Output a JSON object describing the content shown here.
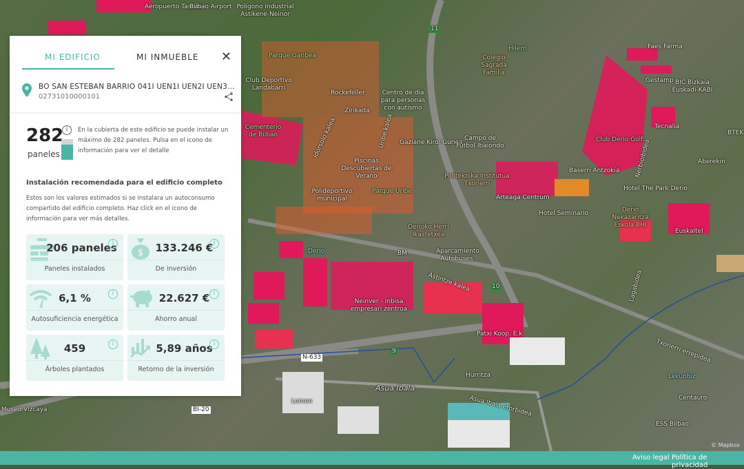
{
  "panel": {
    "tabs": [
      {
        "label": "MI EDIFICIO",
        "active": true
      },
      {
        "label": "MI INMUEBLE",
        "active": false
      }
    ],
    "close_icon": "close-icon",
    "address": "BO SAN ESTEBAN BARRIO 041I UEN1I UEN2I UEN3...",
    "reference": "02731010000101",
    "max_panels": "282",
    "max_panels_unit": "paneles",
    "gauge_fill_fraction": 0.73,
    "max_panels_description": "En la cubierta de este edificio se puede instalar un máximo de 282 paneles. Pulsa en el icono de información para ver el detalle",
    "recommended_title": "Instalación recomendada para el edificio completo",
    "recommended_description": "Estos son los valores estimados si se instalara un autoconsumo compartido del edificio completo. Haz click en el icono de información para ver más detalles.",
    "cards": [
      {
        "value": "206 paneles",
        "label": "Paneles instalados",
        "icon": "solar-panel-icon"
      },
      {
        "value": "133.246 €",
        "label": "De inversión",
        "icon": "money-bag-icon"
      },
      {
        "value": "6,1 %",
        "label": "Autosuficiencia energética",
        "icon": "energy-gauge-icon"
      },
      {
        "value": "22.627 €",
        "label": "Ahorro anual",
        "icon": "piggy-bank-icon"
      },
      {
        "value": "459",
        "label": "Árboles plantados",
        "icon": "trees-icon"
      },
      {
        "value": "5,89 años",
        "label": "Retorno de la inversión",
        "icon": "growth-chart-icon"
      }
    ],
    "accent_color": "#4bb5a5"
  },
  "map": {
    "labels": [
      "Aeropuerto Taskas",
      "Bilbao Airport",
      "Polígono Industrial Astikene-Neinor",
      "Parque Ganbea",
      "Club Deportivo Landabarri",
      "Rockefeller",
      "Centro de día para personas con autismo",
      "Zirikada",
      "Colegio Sagrada Familia",
      "Hilerri",
      "Cementerio de Bilbao",
      "Gaziane Kirol Gunea",
      "Campo de Fútbol Ibaiondo",
      "Piscinas Descubiertas de Verano",
      "Polideportivo municipal",
      "Parque Uribe",
      "Politeknika Institutua Txorierri",
      "Arteaga Centrum",
      "Hotel Seminario",
      "Derioko Herri Ikastetxea",
      "BM",
      "Aparcamiento Autobuses",
      "Derio",
      "Neinver - Inbisa empresari zentroa",
      "Patxi Koop. E.k.",
      "Hurritza",
      "Lomen",
      "Faes Farma",
      "Gestamp",
      "BIC Bizkaia Euskadi-KABI",
      "Tecnalia",
      "Club Derio Golf",
      "Baserri Antzokia",
      "BTEK",
      "Aberekin",
      "Hotel The Park Derio",
      "Derio Nekazaritza Eskola BHI",
      "Euskaltel",
      "Lekunbiz",
      "Centauro",
      "ESS Bilbao",
      "Astintze kalea",
      "Asua Ibaia",
      "Asua Ibaia etorbidea",
      "Txorierri errepidea",
      "Lagabidea",
      "Nerbioibidea",
      "Uribe kalea",
      "Idorsolo kalea",
      "Museo Vizcaya"
    ],
    "road_shields": [
      "11",
      "10",
      "9",
      "N-633",
      "BI-20"
    ],
    "attribution": "© Mapbox"
  },
  "footer": {
    "links": [
      "Aviso legal",
      "Política de privacidad"
    ]
  }
}
